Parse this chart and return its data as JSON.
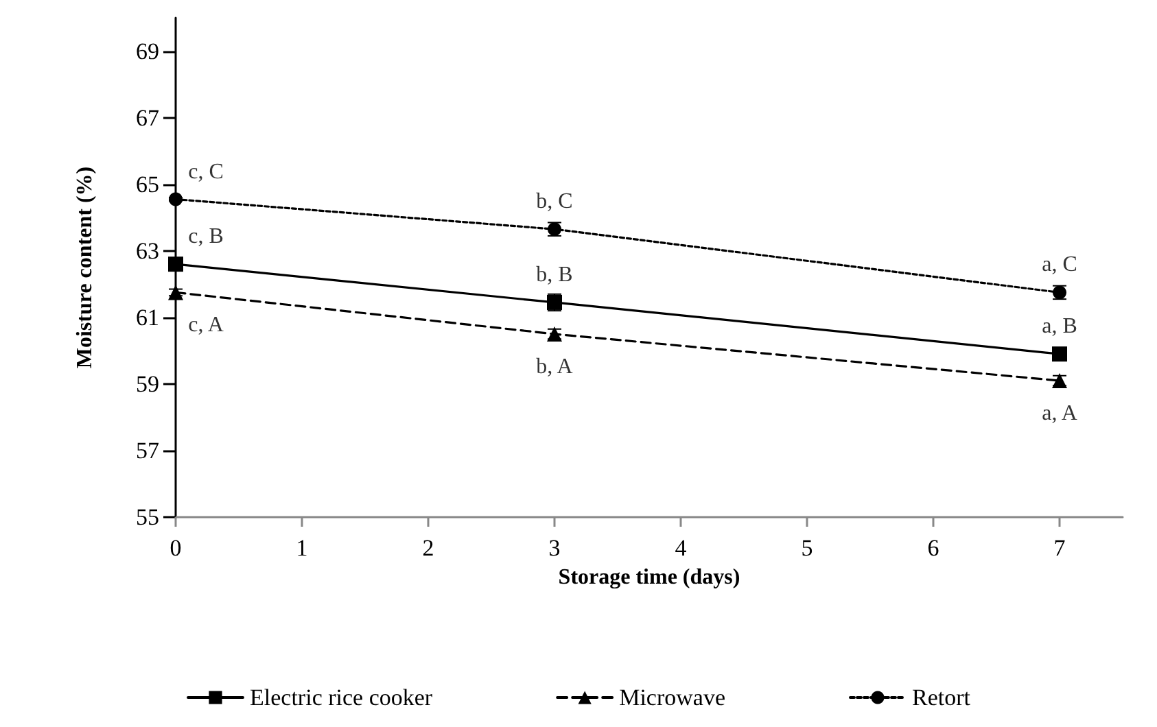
{
  "chart_data": {
    "type": "line",
    "xlabel": "Storage time (days)",
    "ylabel": "Moisture content (%)",
    "x": [
      0,
      3,
      7
    ],
    "xlim": [
      0,
      7.5
    ],
    "xticks": [
      0,
      1,
      2,
      3,
      4,
      5,
      6,
      7
    ],
    "ylim": [
      55,
      70
    ],
    "yticks": [
      55,
      57,
      59,
      61,
      63,
      65,
      67,
      69
    ],
    "grid": false,
    "legend": "bottom",
    "series": [
      {
        "name": "Electric rice cooker",
        "color": "#000000",
        "values": [
          62.6,
          61.45,
          59.9
        ],
        "errors": [
          0.1,
          0.25,
          0.15
        ],
        "marker": "square",
        "line_style": "solid"
      },
      {
        "name": "Microwave",
        "color": "#000000",
        "values": [
          61.75,
          60.5,
          59.1
        ],
        "errors": [
          0.1,
          0.15,
          0.15
        ],
        "marker": "triangle",
        "line_style": "dashed"
      },
      {
        "name": "Retort",
        "color": "#000000",
        "values": [
          64.55,
          63.65,
          61.75
        ],
        "errors": [
          0.05,
          0.2,
          0.2
        ],
        "marker": "circle",
        "line_style": "dotted"
      }
    ],
    "annotations": [
      {
        "text": "c, B",
        "x": 0,
        "y": 62.6
      },
      {
        "text": "b, B",
        "x": 3,
        "y": 61.45
      },
      {
        "text": "a, B",
        "x": 7,
        "y": 59.9
      },
      {
        "text": "c, A",
        "x": 0,
        "y": 61.75
      },
      {
        "text": "b, A",
        "x": 3,
        "y": 60.5
      },
      {
        "text": "a, A",
        "x": 7,
        "y": 59.1
      },
      {
        "text": "c, C",
        "x": 0,
        "y": 64.55
      },
      {
        "text": "b, C",
        "x": 3,
        "y": 63.65
      },
      {
        "text": "a, C",
        "x": 7,
        "y": 61.75
      }
    ]
  }
}
